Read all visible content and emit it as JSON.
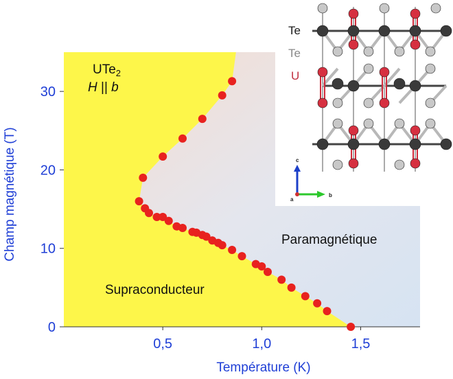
{
  "chart_data": {
    "type": "scatter",
    "xlabel": "Température (K)",
    "ylabel": "Champ magnétique (T)",
    "xlim": [
      0.0,
      1.8
    ],
    "ylim": [
      0,
      35
    ],
    "xticks": [
      0.5,
      1.0,
      1.5
    ],
    "xtick_labels": [
      "0,5",
      "1,0",
      "1,5"
    ],
    "yticks": [
      0,
      10,
      20,
      30
    ],
    "ytick_labels": [
      "0",
      "10",
      "20",
      "30"
    ],
    "grid": false,
    "series": [
      {
        "color": "#e8221f",
        "points": [
          [
            0.85,
            31.3
          ],
          [
            0.8,
            29.5
          ],
          [
            0.7,
            26.5
          ],
          [
            0.6,
            24.0
          ],
          [
            0.5,
            21.7
          ],
          [
            0.4,
            19.0
          ],
          [
            0.38,
            16.0
          ],
          [
            0.41,
            15.1
          ],
          [
            0.43,
            14.5
          ],
          [
            0.47,
            14.0
          ],
          [
            0.5,
            14.0
          ],
          [
            0.53,
            13.5
          ],
          [
            0.57,
            12.8
          ],
          [
            0.6,
            12.6
          ],
          [
            0.65,
            12.1
          ],
          [
            0.67,
            12.0
          ],
          [
            0.7,
            11.7
          ],
          [
            0.72,
            11.5
          ],
          [
            0.75,
            11.0
          ],
          [
            0.78,
            10.7
          ],
          [
            0.8,
            10.4
          ],
          [
            0.85,
            9.8
          ],
          [
            0.9,
            9.0
          ],
          [
            0.97,
            8.0
          ],
          [
            1.0,
            7.7
          ],
          [
            1.03,
            7.0
          ],
          [
            1.1,
            6.0
          ],
          [
            1.15,
            5.0
          ],
          [
            1.22,
            3.9
          ],
          [
            1.28,
            3.0
          ],
          [
            1.33,
            2.0
          ],
          [
            1.45,
            0.0
          ]
        ]
      }
    ],
    "regions": {
      "superconductor_label": "Supraconducteur",
      "paramagnetic_label": "Paramagnétique",
      "superconductor_color": "#fdf64a",
      "paramagnetic_color": "#dce6f3"
    },
    "annotations": {
      "compound_base": "UTe",
      "compound_sub": "2",
      "field_main": "H",
      "field_sep": " || ",
      "field_axis": "b"
    }
  },
  "inset": {
    "labels": [
      {
        "text": "Te",
        "color": "#1a1a1a"
      },
      {
        "text": "Te",
        "color": "#888888"
      },
      {
        "text": "U",
        "color": "#c03040"
      }
    ],
    "axis_labels": {
      "vertical": "c",
      "horizontal": "b",
      "origin": "a"
    }
  }
}
